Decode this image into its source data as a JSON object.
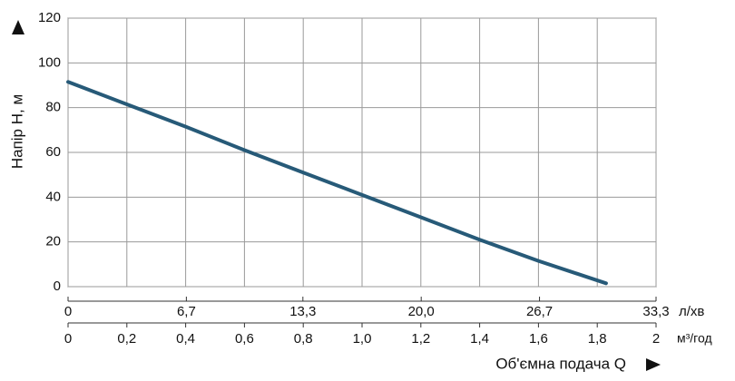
{
  "chart_data": {
    "type": "line",
    "x_label": "Об'ємна подача Q",
    "y_label": "Напір H, м",
    "x_unit": "м³/год",
    "x2_unit": "л/хв",
    "x": [
      0,
      0.2,
      0.4,
      0.6,
      0.8,
      1.0,
      1.2,
      1.4,
      1.6,
      1.83
    ],
    "series": [
      {
        "color": "#275a78",
        "values": [
          91.5,
          81.5,
          71.5,
          61,
          51,
          41,
          31,
          21,
          11.5,
          1.5
        ]
      }
    ],
    "xlim": [
      0,
      2
    ],
    "xticks": [
      0,
      {
        "value": 0.2,
        "label": "0,2"
      },
      {
        "value": 0.4,
        "label": "0,4"
      },
      {
        "value": 0.6,
        "label": "0,6"
      },
      {
        "value": 0.8,
        "label": "0,8"
      },
      {
        "value": 1.0,
        "label": "1,0"
      },
      {
        "value": 1.2,
        "label": "1,2"
      },
      {
        "value": 1.4,
        "label": "1,4"
      },
      {
        "value": 1.6,
        "label": "1,6"
      },
      {
        "value": 1.8,
        "label": "1,8"
      },
      2
    ],
    "x2lim": [
      0,
      33.3
    ],
    "x2ticks": [
      0,
      {
        "value": 6.7,
        "label": "6,7"
      },
      {
        "value": 13.3,
        "label": "13,3"
      },
      {
        "value": 20.0,
        "label": "20,0"
      },
      {
        "value": 26.7,
        "label": "26,7"
      },
      {
        "value": 33.3,
        "label": "33,3"
      }
    ],
    "ylim": [
      0,
      120
    ],
    "yticks": [
      0,
      20,
      40,
      60,
      80,
      100,
      120
    ],
    "grid": true
  }
}
